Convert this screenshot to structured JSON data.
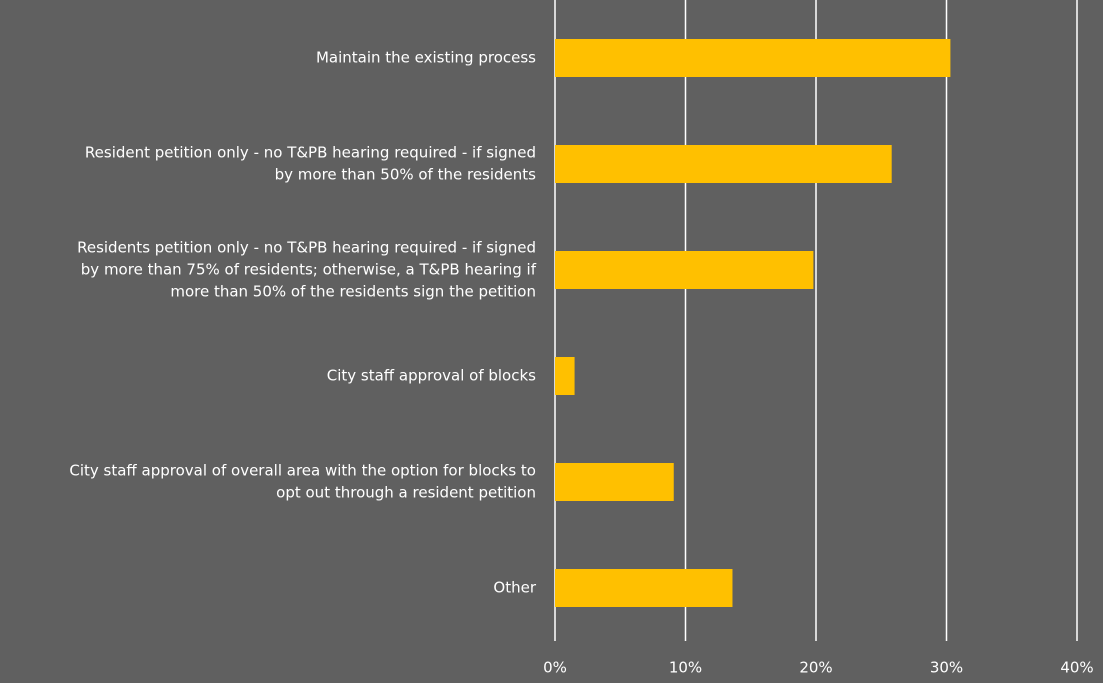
{
  "chart_data": {
    "type": "barh",
    "categories": [
      [
        "Maintain the existing process"
      ],
      [
        "Resident petition only - no T&PB hearing required  - if signed",
        "by more than 50% of the residents"
      ],
      [
        "Residents petition only - no T&PB hearing required - if signed",
        "by more than 75% of residents; otherwise, a T&PB hearing if",
        "more than 50% of the residents sign the petition"
      ],
      [
        "City staff approval of blocks"
      ],
      [
        "City staff approval of overall area with the option for blocks to",
        "opt out through a resident petition"
      ],
      [
        "Other"
      ]
    ],
    "values": [
      30.3,
      25.8,
      19.8,
      1.5,
      9.1,
      13.6
    ],
    "color": "#ffc000",
    "xlim": [
      0,
      40
    ],
    "xticks": [
      {
        "value": 0,
        "label": "0%"
      },
      {
        "value": 10,
        "label": "10%"
      },
      {
        "value": 20,
        "label": "20%"
      },
      {
        "value": 30,
        "label": "30%"
      },
      {
        "value": 40,
        "label": "40%"
      }
    ],
    "grid": true
  }
}
